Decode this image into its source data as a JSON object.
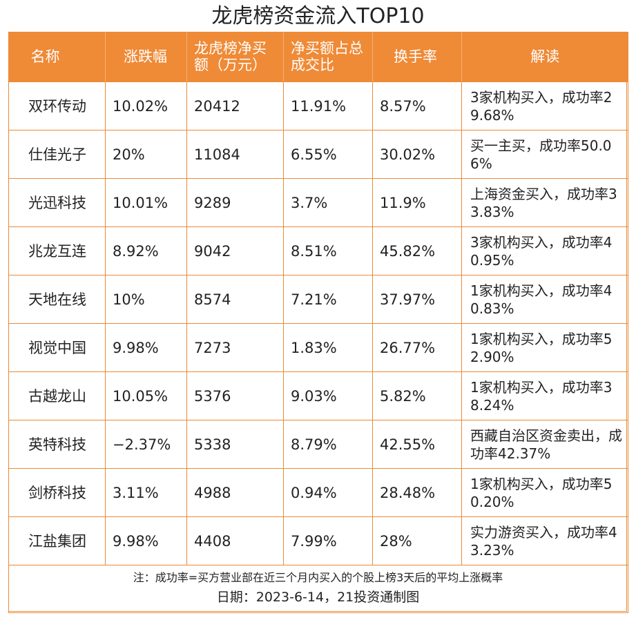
{
  "title": "龙虎榜资金流入TOP10",
  "headers": [
    "名称",
    "涨跌幅",
    "龙虎榜净买额（万元）",
    "净买额占总成交比",
    "换手率",
    "解读"
  ],
  "rows": [
    {
      "name": "双环传动",
      "change": "10.02%",
      "net_buy": "20412",
      "ratio": "11.91%",
      "turnover": "8.57%",
      "note": "3家机构买入，成功率29.68%"
    },
    {
      "name": "仕佳光子",
      "change": "20%",
      "net_buy": "11084",
      "ratio": "6.55%",
      "turnover": "30.02%",
      "note": "买一主买，成功率50.06%"
    },
    {
      "name": "光迅科技",
      "change": "10.01%",
      "net_buy": "9289",
      "ratio": "3.7%",
      "turnover": "11.9%",
      "note": "上海资金买入，成功率33.83%"
    },
    {
      "name": "兆龙互连",
      "change": "8.92%",
      "net_buy": "9042",
      "ratio": "8.51%",
      "turnover": "45.82%",
      "note": "3家机构买入，成功率40.95%"
    },
    {
      "name": "天地在线",
      "change": "10%",
      "net_buy": "8574",
      "ratio": "7.21%",
      "turnover": "37.97%",
      "note": "1家机构买入，成功率40.83%"
    },
    {
      "name": "视觉中国",
      "change": "9.98%",
      "net_buy": "7273",
      "ratio": "1.83%",
      "turnover": "26.77%",
      "note": "1家机构买入，成功率52.90%"
    },
    {
      "name": "古越龙山",
      "change": "10.05%",
      "net_buy": "5376",
      "ratio": "9.03%",
      "turnover": "5.82%",
      "note": "1家机构买入，成功率38.24%"
    },
    {
      "name": "英特科技",
      "change": "−2.37%",
      "net_buy": "5338",
      "ratio": "8.79%",
      "turnover": "42.55%",
      "note": "西藏自治区资金卖出，成功率42.37%"
    },
    {
      "name": "剑桥科技",
      "change": "3.11%",
      "net_buy": "4988",
      "ratio": "0.94%",
      "turnover": "28.48%",
      "note": "1家机构买入，成功率50.20%"
    },
    {
      "name": "江盐集团",
      "change": "9.98%",
      "net_buy": "4408",
      "ratio": "7.99%",
      "turnover": "28%",
      "note": "实力游资买入，成功率43.23%"
    }
  ],
  "footnote": "注：成功率=买方营业部在近三个月内买入的个股上榜3天后的平均上涨概率",
  "date_line": "日期：2023-6-14，21投资通制图",
  "colors": {
    "header_bg": "#ef8a36",
    "border": "#e98a35"
  }
}
